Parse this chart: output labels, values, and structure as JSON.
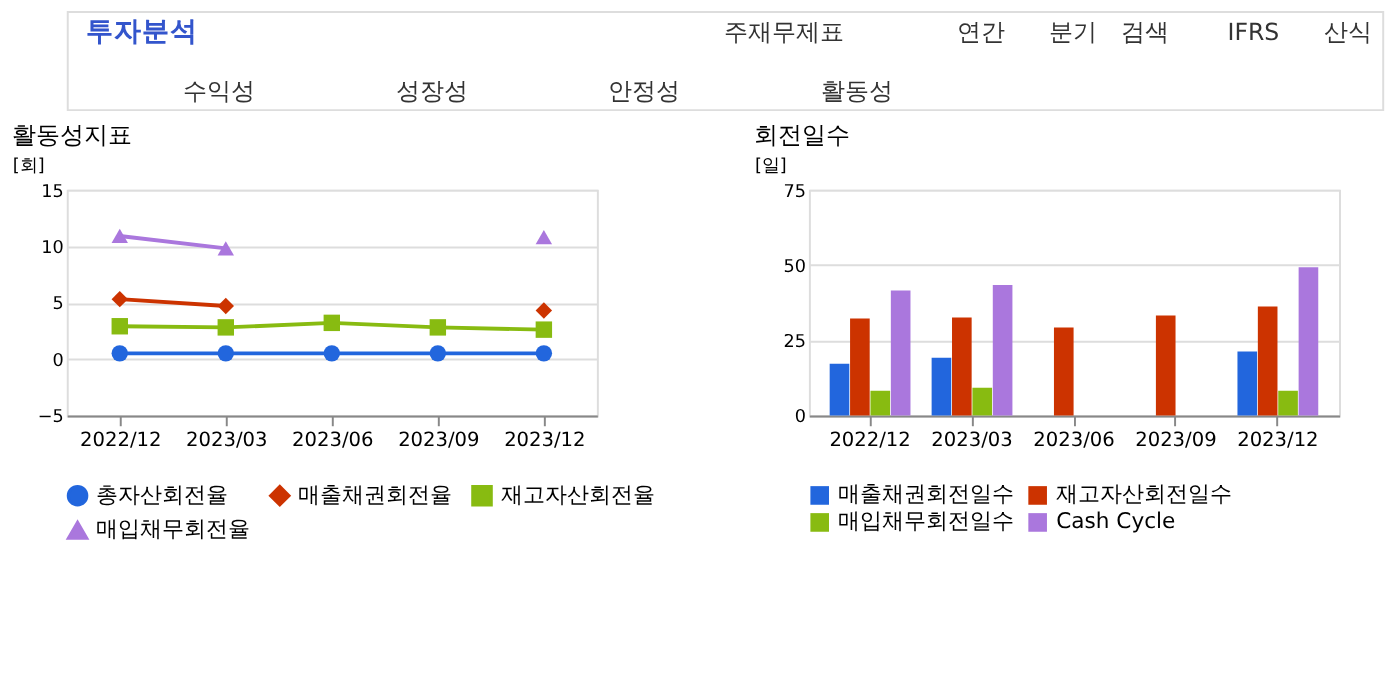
{
  "chart_data": [
    {
      "type": "line",
      "title": "활동성지표",
      "ylabel": "[회]",
      "annotations": [
        "투자분석",
        "주재무제표",
        "연간",
        "분기",
        "검색",
        "IFRS",
        "산식",
        "수익성",
        "성장성",
        "안정성",
        "활동성"
      ],
      "categories": [
        "2022/12",
        "2023/03",
        "2023/06",
        "2023/09",
        "2023/12"
      ],
      "series": [
        {
          "name": "총자산회전율",
          "color": "#2266dd",
          "marker": "circle",
          "values": [
            0.5,
            0.5,
            0.5,
            0.5,
            0.5
          ]
        },
        {
          "name": "매출채권회전율",
          "color": "#cc3300",
          "marker": "diamond",
          "values": [
            5.3,
            4.7,
            null,
            null,
            4.3
          ]
        },
        {
          "name": "재고자산회전율",
          "color": "#88bb11",
          "marker": "square",
          "values": [
            2.9,
            2.8,
            3.2,
            2.8,
            2.6
          ]
        },
        {
          "name": "매입채무회전율",
          "color": "#aa77dd",
          "marker": "triangle",
          "values": [
            10.9,
            9.8,
            null,
            null,
            10.8
          ]
        }
      ],
      "ylim": [
        -5,
        15
      ],
      "yticks": [
        -5,
        0,
        5,
        10,
        15
      ],
      "grid": "y",
      "legend": "bottom"
    },
    {
      "type": "bar",
      "title": "회전일수",
      "ylabel": "[일]",
      "categories": [
        "2022/12",
        "2023/03",
        "2023/06",
        "2023/09",
        "2023/12"
      ],
      "series": [
        {
          "name": "매출채권회전일수",
          "color": "#2266dd",
          "values": [
            17.2,
            19.2,
            null,
            null,
            21.2
          ]
        },
        {
          "name": "재고자산회전일수",
          "color": "#cc3300",
          "values": [
            32.2,
            32.5,
            29.2,
            33.2,
            36.2
          ]
        },
        {
          "name": "매입채무회전일수",
          "color": "#88bb11",
          "values": [
            8.2,
            9.2,
            null,
            null,
            8.2
          ]
        },
        {
          "name": "Cash Cycle",
          "color": "#aa77dd",
          "values": [
            41.5,
            43.3,
            null,
            null,
            49.2
          ]
        }
      ],
      "ylim": [
        0,
        75
      ],
      "yticks": [
        0,
        25,
        50,
        75
      ],
      "grid": "y",
      "legend": "bottom"
    }
  ]
}
